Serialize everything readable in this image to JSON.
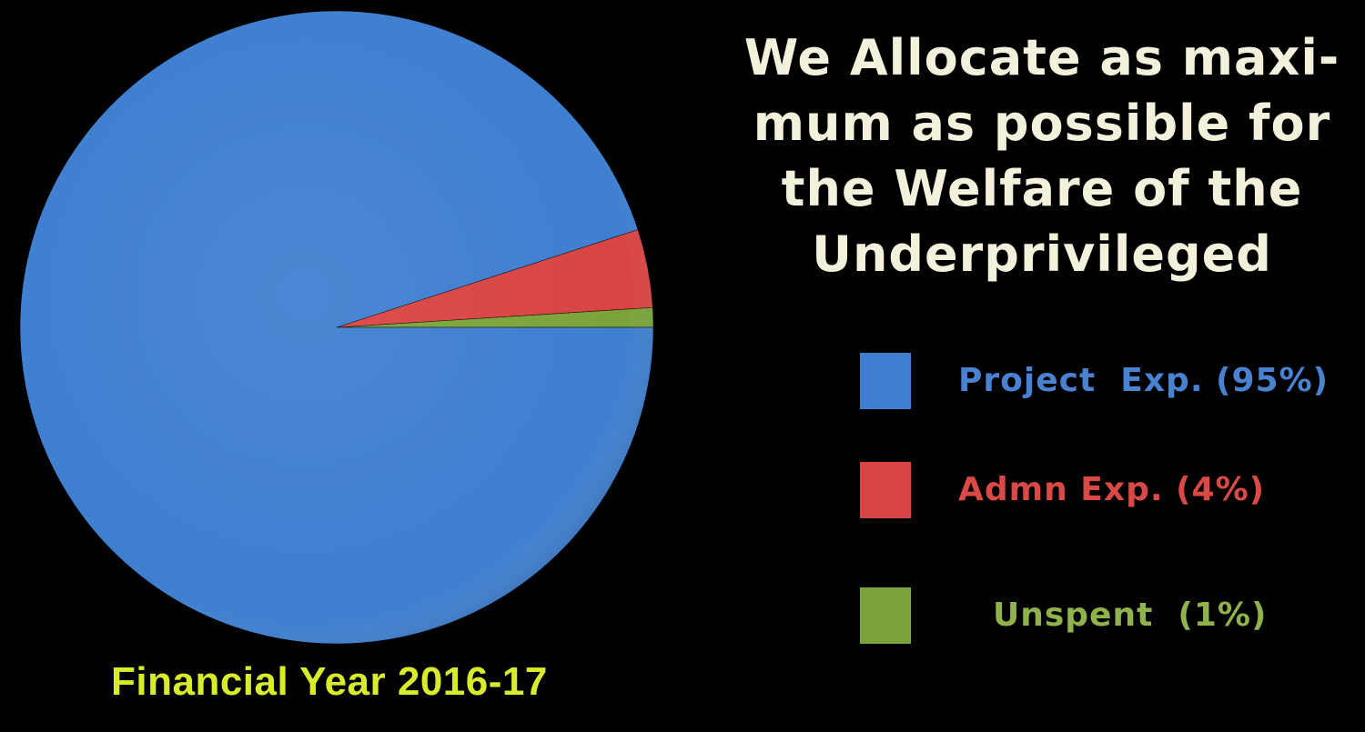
{
  "headline": {
    "lines": [
      "We Allocate as maxi-",
      "mum as possible for",
      "the Welfare of the",
      "Underprivileged"
    ],
    "color": "#f3f0dc"
  },
  "footer": {
    "text": "Financial Year 2016-17",
    "color": "#d9ec2a"
  },
  "chart_data": {
    "type": "pie",
    "title": "",
    "slices": [
      {
        "label": "Project  Exp. (95%)",
        "value": 95,
        "color": "#3f7fd0",
        "text_color": "#4a82d2"
      },
      {
        "label": "Admn Exp. (4%)",
        "value": 4,
        "color": "#d94444",
        "text_color": "#d94a46"
      },
      {
        "label": "Unspent  (1%)",
        "value": 1,
        "color": "#7aa43a",
        "text_color": "#8fb34a"
      }
    ],
    "legend": "right"
  }
}
